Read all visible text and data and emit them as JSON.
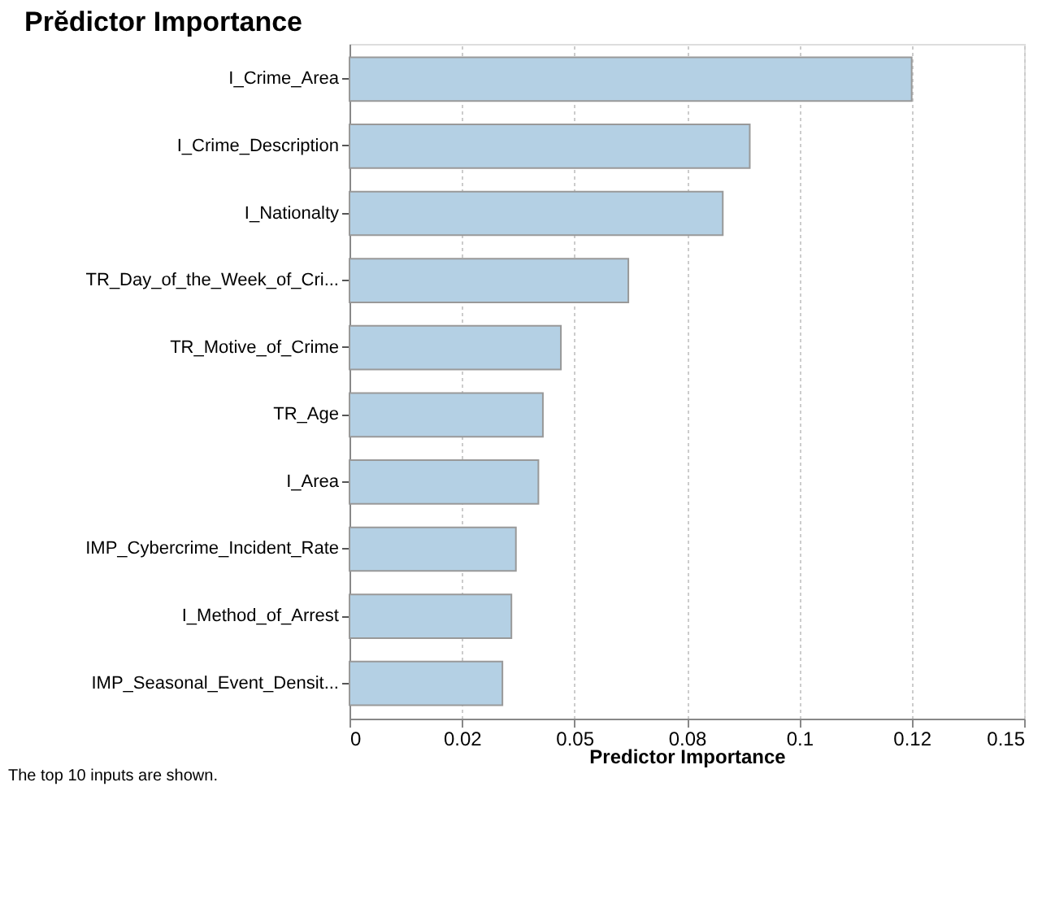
{
  "chart_data": {
    "type": "bar",
    "orientation": "horizontal",
    "title": "Prĕdictor Importance",
    "xlabel": "Predictor Importance",
    "categories": [
      "I_Crime_Area",
      "I_Crime_Description",
      "I_Nationalty",
      "TR_Day_of_the_Week_of_Cri...",
      "TR_Motive_of_Crime",
      "TR_Age",
      "I_Area",
      "IMP_Cybercrime_Incident_Rate",
      "I_Method_of_Arrest",
      "IMP_Seasonal_Event_Densit..."
    ],
    "values": [
      0.125,
      0.089,
      0.083,
      0.062,
      0.047,
      0.043,
      0.042,
      0.037,
      0.036,
      0.034
    ],
    "color": "#b4d0e4",
    "xlim": [
      0,
      0.15
    ],
    "xticks": [
      0,
      {
        "value": 0.025,
        "label": "0.02"
      },
      0.05,
      {
        "value": 0.075,
        "label": "0.08"
      },
      0.1,
      {
        "value": 0.125,
        "label": "0.12"
      },
      0.15
    ],
    "grid": "x",
    "annotations": [
      "The top 10 inputs are shown."
    ]
  }
}
